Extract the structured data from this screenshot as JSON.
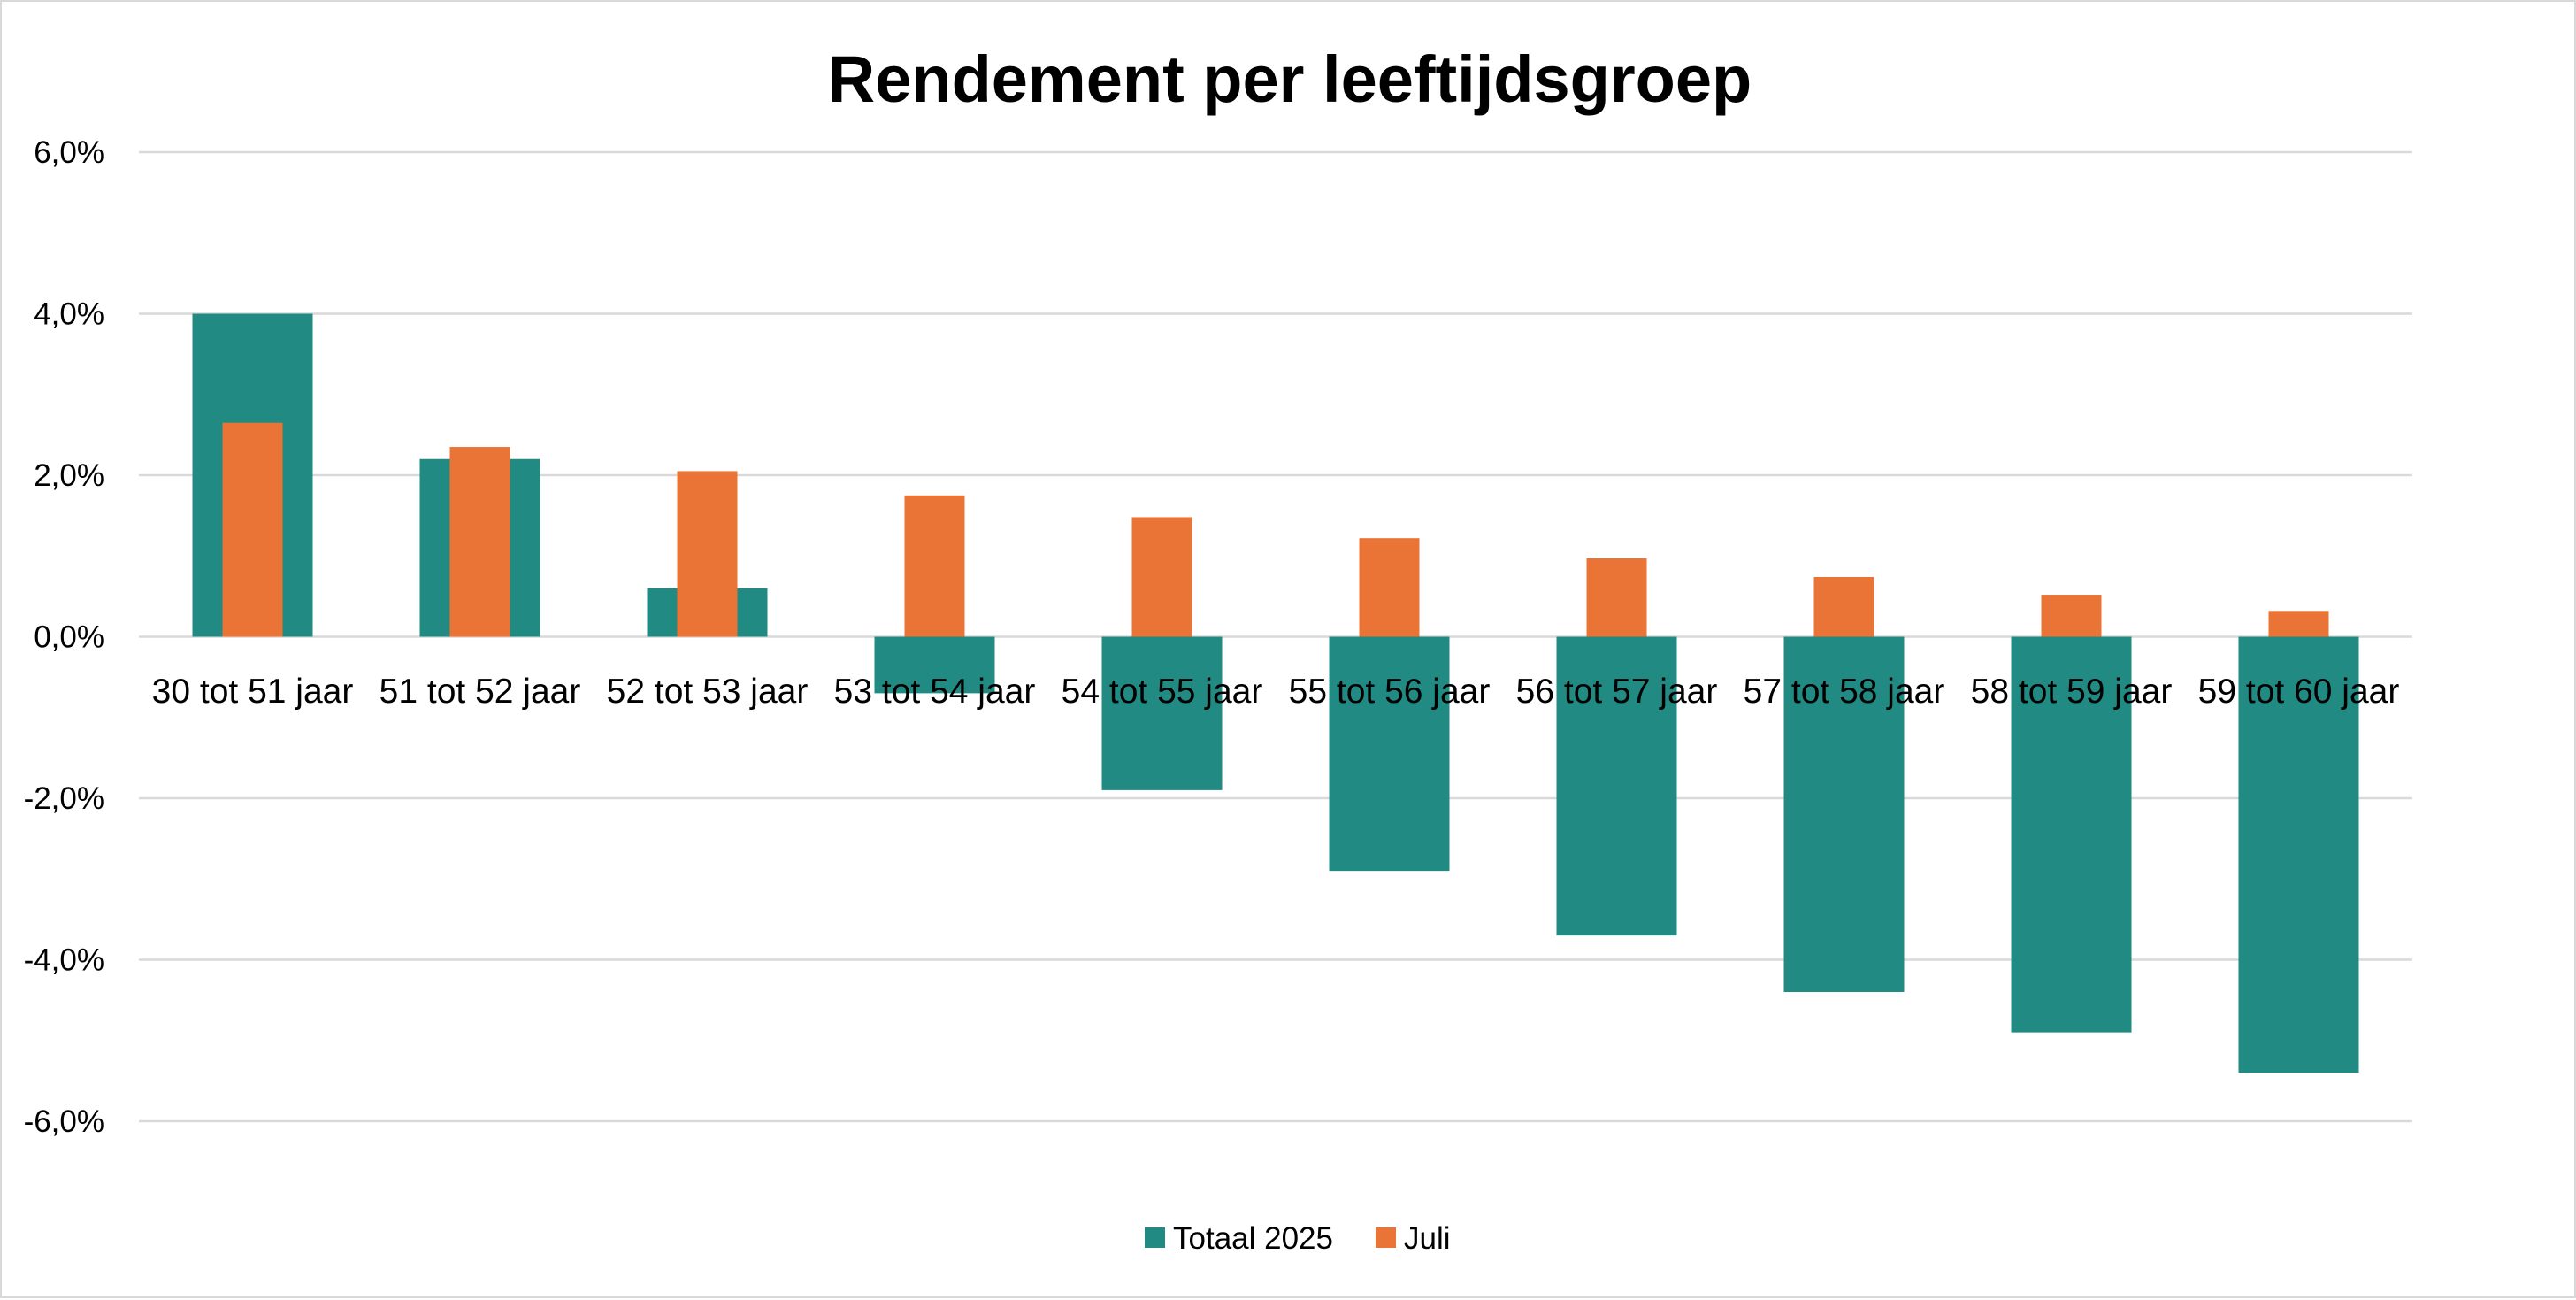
{
  "chart_data": {
    "type": "bar",
    "title": "Rendement per leeftijdsgroep",
    "xlabel": "",
    "ylabel": "",
    "ylim": [
      -6,
      6
    ],
    "yticks": [
      6,
      4,
      2,
      0,
      -2,
      -4,
      -6
    ],
    "ytick_labels": [
      "6,0%",
      "4,0%",
      "2,0%",
      "0,0%",
      "-2,0%",
      "-4,0%",
      "-6,0%"
    ],
    "grid": true,
    "legend_position": "bottom",
    "categories": [
      "30 tot 51 jaar",
      "51 tot 52 jaar",
      "52 tot 53 jaar",
      "53 tot 54 jaar",
      "54 tot 55 jaar",
      "55 tot 56 jaar",
      "56 tot 57 jaar",
      "57 tot 58 jaar",
      "58 tot 59 jaar",
      "59 tot 60 jaar"
    ],
    "series": [
      {
        "name": "Totaal 2025",
        "color": "#218a82",
        "values": [
          4.0,
          2.2,
          0.6,
          -0.7,
          -1.9,
          -2.9,
          -3.7,
          -4.4,
          -4.9,
          -5.4
        ]
      },
      {
        "name": "Juli",
        "color": "#ea7435",
        "values": [
          2.65,
          2.35,
          2.05,
          1.75,
          1.48,
          1.22,
          0.97,
          0.74,
          0.52,
          0.32
        ]
      }
    ]
  }
}
